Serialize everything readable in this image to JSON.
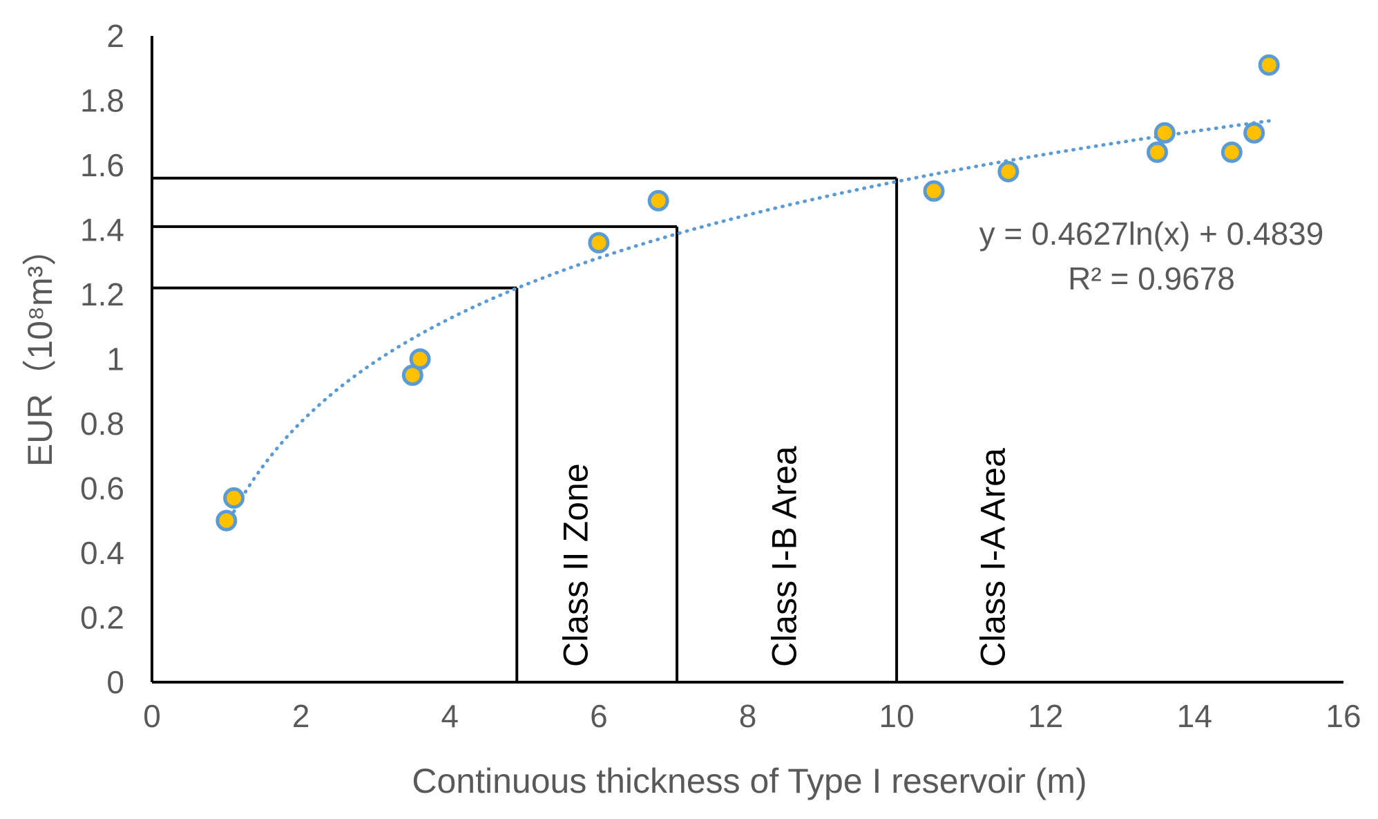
{
  "chart_data": {
    "type": "scatter",
    "xlabel": "Continuous thickness of Type I reservoir (m)",
    "ylabel": "EUR（10⁸m³）",
    "xlim": [
      0,
      16
    ],
    "ylim": [
      0,
      2
    ],
    "x_ticks": [
      "0",
      "2",
      "4",
      "6",
      "8",
      "10",
      "12",
      "14",
      "16"
    ],
    "y_ticks": [
      "0",
      "0.2",
      "0.4",
      "0.6",
      "0.8",
      "1",
      "1.2",
      "1.4",
      "1.6",
      "1.8",
      "2"
    ],
    "series": [
      {
        "points": [
          [
            1.0,
            0.5
          ],
          [
            1.1,
            0.57
          ],
          [
            3.5,
            0.95
          ],
          [
            3.6,
            1.0
          ],
          [
            6.0,
            1.36
          ],
          [
            6.8,
            1.49
          ],
          [
            10.5,
            1.52
          ],
          [
            11.5,
            1.58
          ],
          [
            13.5,
            1.64
          ],
          [
            13.6,
            1.7
          ],
          [
            14.5,
            1.64
          ],
          [
            14.8,
            1.7
          ],
          [
            15.0,
            1.91
          ]
        ]
      }
    ],
    "trendline": {
      "type": "logarithmic",
      "a": 0.4627,
      "b": 0.4839,
      "x_range": [
        1.1,
        15.0
      ],
      "equation": "y = 0.4627ln(x) + 0.4839",
      "r_squared": "R² = 0.9678"
    },
    "boundaries": [
      {
        "x": 4.9,
        "y": 1.22
      },
      {
        "x": 7.05,
        "y": 1.41
      },
      {
        "x": 10.0,
        "y": 1.56
      }
    ],
    "zone_labels": [
      {
        "text": "Class II Zone",
        "x": 5.85
      },
      {
        "text": "Class I-B Area",
        "x": 8.65
      },
      {
        "text": "Class I-A Area",
        "x": 11.45
      }
    ],
    "colors": {
      "point_fill": "#FFC000",
      "point_stroke": "#5B9BD5",
      "trendline": "#5B9BD5",
      "axis": "#000000",
      "text": "#595959"
    }
  }
}
